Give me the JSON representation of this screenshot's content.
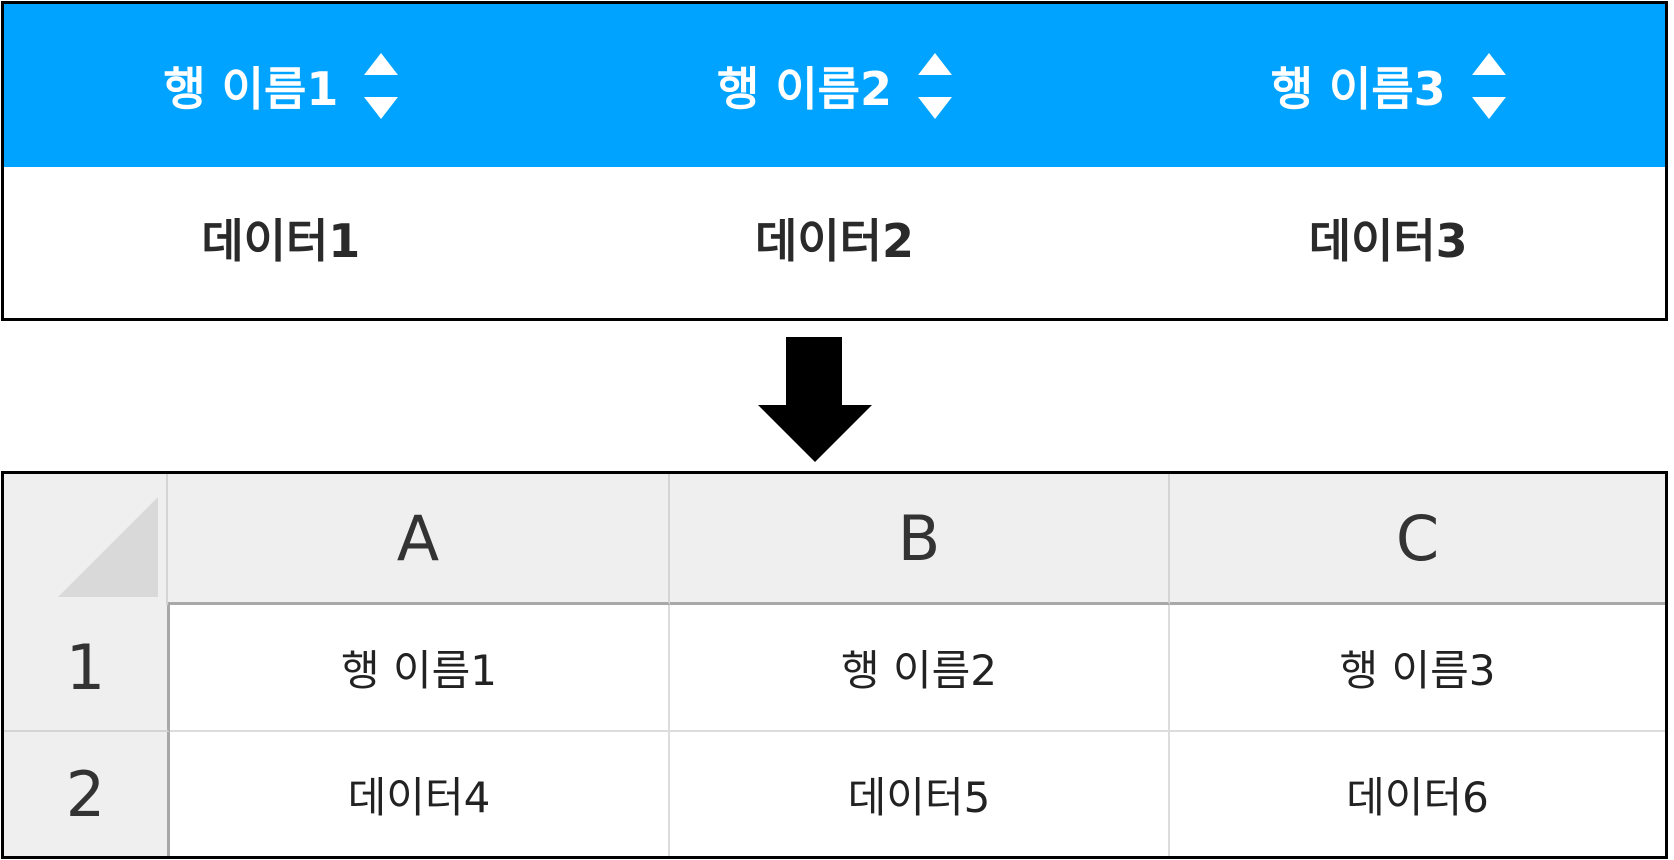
{
  "colors": {
    "header_bg": "#00a3ff",
    "sheet_header_bg": "#efefef",
    "arrow": "#000000"
  },
  "web_table": {
    "headers": [
      "행 이름1",
      "행 이름2",
      "행 이름3"
    ],
    "row": [
      "데이터1",
      "데이터2",
      "데이터3"
    ],
    "sort_icon": "sort-up-down-icon"
  },
  "arrow_icon": "arrow-down-icon",
  "spreadsheet": {
    "columns": [
      "A",
      "B",
      "C"
    ],
    "rows": [
      {
        "number": "1",
        "cells": [
          "행 이름1",
          "행 이름2",
          "행 이름3"
        ]
      },
      {
        "number": "2",
        "cells": [
          "데이터4",
          "데이터5",
          "데이터6"
        ]
      }
    ]
  }
}
